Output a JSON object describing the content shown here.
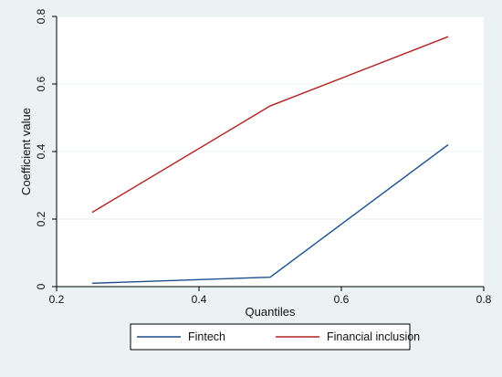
{
  "chart_data": {
    "type": "line",
    "title": "",
    "xlabel": "Quantiles",
    "ylabel": "Coefficient value",
    "xlim": [
      0.2,
      0.8
    ],
    "ylim": [
      0,
      0.8
    ],
    "xticks": [
      0.2,
      0.4,
      0.6,
      0.8
    ],
    "yticks": [
      0,
      0.2,
      0.4,
      0.6,
      0.8
    ],
    "xtick_labels": [
      "0.2",
      "0.4",
      "0.6",
      "0.8"
    ],
    "ytick_labels": [
      "0",
      "0.2",
      "0.4",
      "0.6",
      "0.8"
    ],
    "grid": true,
    "legend_position": "bottom",
    "series": [
      {
        "name": "Fintech",
        "color": "#1a4f8a",
        "x": [
          0.25,
          0.5,
          0.75
        ],
        "y": [
          0.01,
          0.028,
          0.42
        ]
      },
      {
        "name": "Financial inclusion",
        "color": "#b22222",
        "x": [
          0.25,
          0.5,
          0.75
        ],
        "y": [
          0.22,
          0.535,
          0.74
        ]
      }
    ]
  }
}
